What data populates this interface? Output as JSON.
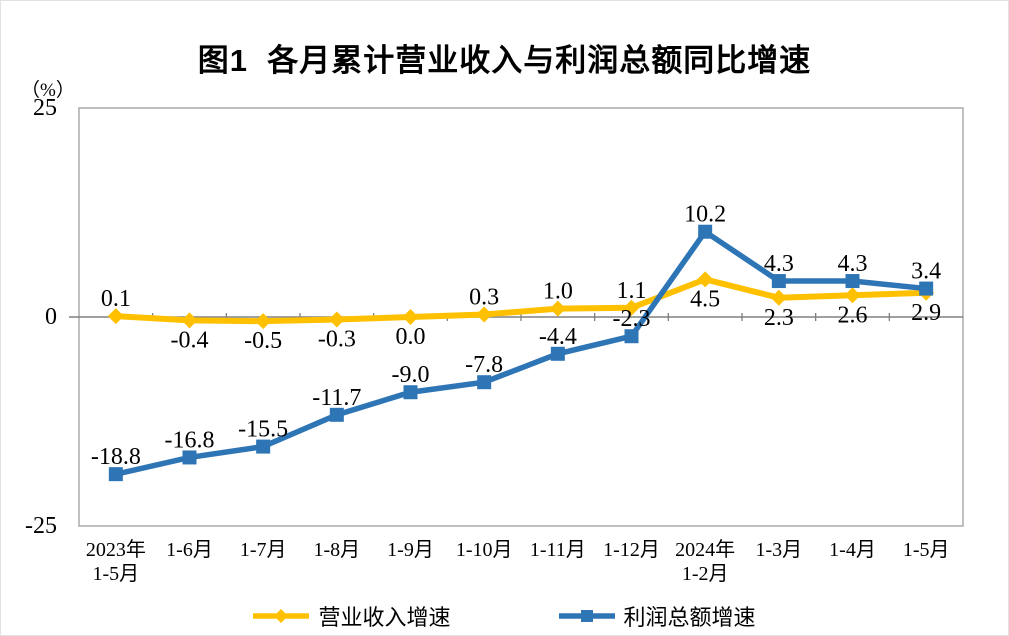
{
  "page": {
    "background": "#ffffff",
    "border_color": "#e2e2e2"
  },
  "chart_data": {
    "type": "line",
    "title": "图1  各月累计营业收入与利润总额同比增速",
    "unit_label": "（%）",
    "axis_color": "#a6a6a6",
    "zero_line_color": "#808080",
    "y_axis": {
      "min": -25,
      "max": 25,
      "ticks": [
        {
          "value": 25,
          "label": "25"
        },
        {
          "value": 0,
          "label": "0"
        },
        {
          "value": -25,
          "label": "-25"
        }
      ]
    },
    "categories": [
      "2023年\n1-5月",
      "1-6月",
      "1-7月",
      "1-8月",
      "1-9月",
      "1-10月",
      "1-11月",
      "1-12月",
      "2024年\n1-2月",
      "1-3月",
      "1-4月",
      "1-5月"
    ],
    "grid": {
      "zero_line": true,
      "plot_border": true,
      "category_ticks": true
    },
    "legend_position": "bottom",
    "series": [
      {
        "name": "营业收入增速",
        "color": "#FFC000",
        "marker": "diamond",
        "values": [
          0.1,
          -0.4,
          -0.5,
          -0.3,
          0.0,
          0.3,
          1.0,
          1.1,
          4.5,
          2.3,
          2.6,
          2.9
        ],
        "labels": [
          "0.1",
          "-0.4",
          "-0.5",
          "-0.3",
          "0.0",
          "0.3",
          "1.0",
          "1.1",
          "4.5",
          "2.3",
          "2.6",
          "2.9"
        ],
        "label_side": [
          "above",
          "below",
          "below",
          "below",
          "below",
          "above",
          "above",
          "above",
          "below",
          "below",
          "below",
          "below"
        ]
      },
      {
        "name": "利润总额增速",
        "color": "#2E75B6",
        "marker": "square",
        "values": [
          -18.8,
          -16.8,
          -15.5,
          -11.7,
          -9.0,
          -7.8,
          -4.4,
          -2.3,
          10.2,
          4.3,
          4.3,
          3.4
        ],
        "labels": [
          "-18.8",
          "-16.8",
          "-15.5",
          "-11.7",
          "-9.0",
          "-7.8",
          "-4.4",
          "-2.3",
          "10.2",
          "4.3",
          "4.3",
          "3.4"
        ],
        "label_side": [
          "above",
          "above",
          "above",
          "above",
          "above",
          "above",
          "above",
          "above",
          "above",
          "above",
          "above",
          "above"
        ]
      }
    ]
  }
}
